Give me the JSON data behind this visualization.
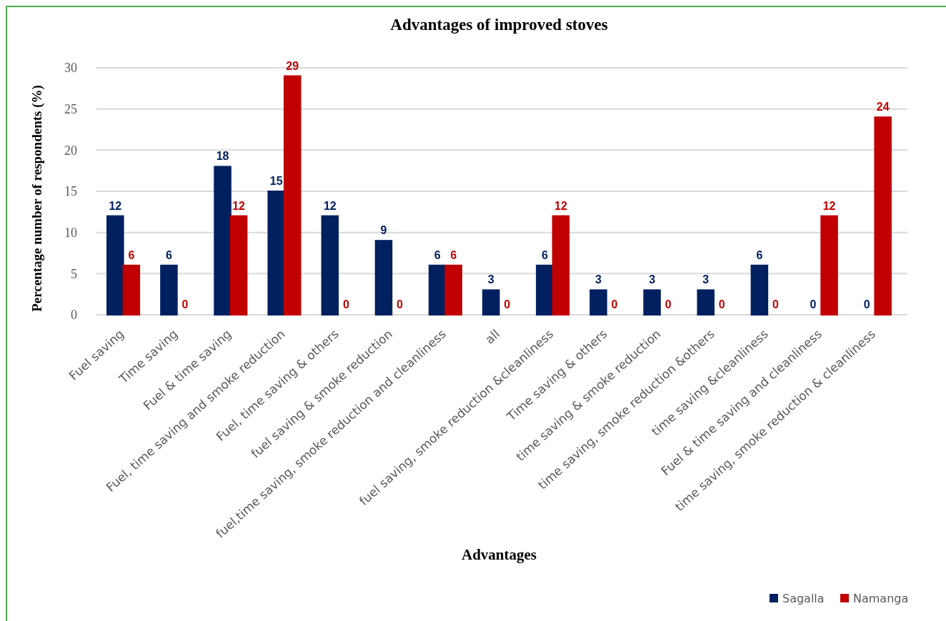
{
  "chart_data": {
    "type": "bar",
    "title": "Advantages of improved stoves",
    "xlabel": "Advantages",
    "ylabel": "Percentage number of respondents (%)",
    "categories": [
      "Fuel saving",
      "Time saving",
      "Fuel & time saving",
      "Fuel, time saving and smoke reduction",
      "Fuel, time saving & others",
      "fuel saving & smoke reduction",
      "fuel,time saving, smoke reduction and cleanliness",
      "all",
      "fuel saving, smoke reduction &cleanliness",
      "Time saving & others",
      "time saving & smoke reduction",
      "time saving, smoke reduction &others",
      "time saving &cleanliness",
      "Fuel & time saving and cleanliness",
      "time saving, smoke reduction & cleanliness"
    ],
    "series": [
      {
        "name": "Sagalla",
        "color": "#002060",
        "values": [
          12,
          6,
          18,
          15,
          12,
          9,
          6,
          3,
          6,
          3,
          3,
          3,
          6,
          0,
          0
        ]
      },
      {
        "name": "Namanga",
        "color": "#c00000",
        "values": [
          6,
          0,
          12,
          29,
          0,
          0,
          6,
          0,
          12,
          0,
          0,
          0,
          0,
          12,
          24
        ]
      }
    ],
    "ylim": [
      0,
      30
    ],
    "yticks": [
      0,
      5,
      10,
      15,
      20,
      25,
      30
    ],
    "grid": "y",
    "legend": "bottom right",
    "data_labels": true
  }
}
